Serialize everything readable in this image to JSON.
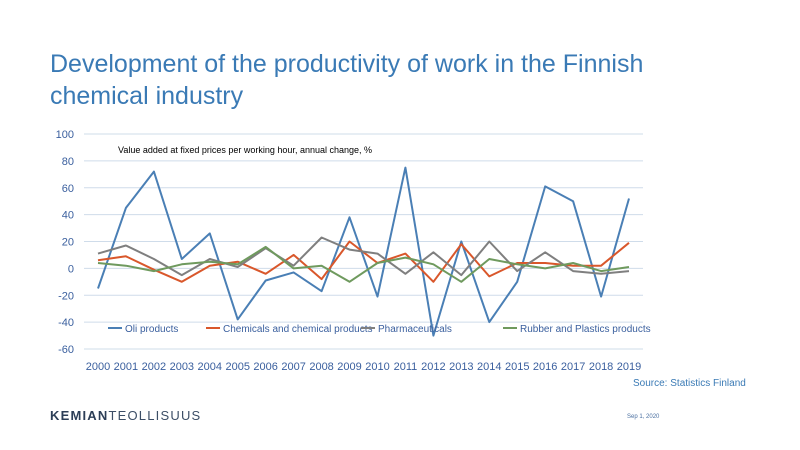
{
  "slide": {
    "title": "Development of the productivity of work in the Finnish chemical industry",
    "source": "Source: Statistics Finland",
    "date": "Sep 1, 2020",
    "logo": {
      "part1": "KEMIAN",
      "part2": "TEOLLISUUS"
    }
  },
  "chart_data": {
    "type": "line",
    "title": "",
    "annotation": "Value added at fixed prices per working hour, annual change, %",
    "xlabel": "",
    "ylabel": "",
    "ylim": [
      -60,
      100
    ],
    "yticks": [
      -60,
      -40,
      -20,
      0,
      20,
      40,
      60,
      80,
      100
    ],
    "grid": true,
    "legend_position": "bottom-inside",
    "categories": [
      "2000",
      "2001",
      "2002",
      "2003",
      "2004",
      "2005",
      "2006",
      "2007",
      "2008",
      "2009",
      "2010",
      "2011",
      "2012",
      "2013",
      "2014",
      "2015",
      "2016",
      "2017",
      "2018",
      "2019"
    ],
    "series": [
      {
        "name": "Oli products",
        "color": "#4a7fb5",
        "values": [
          -15,
          45,
          72,
          7,
          26,
          -38,
          -9,
          -3,
          -17,
          38,
          -21,
          75,
          -50,
          20,
          -40,
          -10,
          61,
          50,
          -21,
          52
        ]
      },
      {
        "name": "Chemicals and chemical products",
        "color": "#d9572b",
        "values": [
          6,
          9,
          -1,
          -10,
          2,
          5,
          -4,
          10,
          -8,
          20,
          4,
          11,
          -10,
          18,
          -6,
          4,
          4,
          2,
          2,
          19
        ]
      },
      {
        "name": "Pharmaceuticals",
        "color": "#7f7f7f",
        "values": [
          11,
          17,
          7,
          -5,
          7,
          1,
          15,
          2,
          23,
          14,
          11,
          -4,
          12,
          -5,
          20,
          -2,
          12,
          -2,
          -4,
          -2
        ]
      },
      {
        "name": "Rubber and Plastics products",
        "color": "#6f9a5e",
        "values": [
          4,
          2,
          -2,
          3,
          5,
          3,
          16,
          0,
          2,
          -10,
          4,
          8,
          3,
          -10,
          7,
          3,
          0,
          4,
          -2,
          1
        ]
      }
    ]
  }
}
